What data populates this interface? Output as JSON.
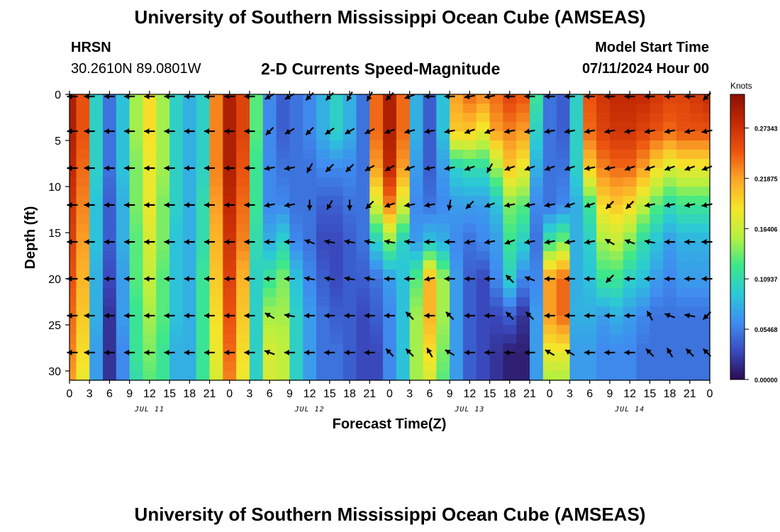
{
  "header": {
    "title": "University of Southern Mississippi Ocean Cube (AMSEAS)",
    "station": "HRSN",
    "coords": "30.2610N  89.0801W",
    "model_start_label": "Model Start Time",
    "model_start_value": "07/11/2024 Hour 00",
    "footer_title": "University of Southern Mississippi Ocean Cube (AMSEAS)"
  },
  "chart_data": {
    "type": "heatmap",
    "title": "2-D Currents Speed-Magnitude",
    "xlabel": "Forecast Time(Z)",
    "ylabel": "Depth (ft)",
    "x_range_hours": [
      0,
      96
    ],
    "ylim": [
      0,
      31
    ],
    "y_ticks": [
      0,
      5,
      10,
      15,
      20,
      25,
      30
    ],
    "x_tick_labels": [
      "0",
      "3",
      "6",
      "9",
      "12",
      "15",
      "18",
      "21",
      "0",
      "3",
      "6",
      "9",
      "12",
      "15",
      "18",
      "21",
      "0",
      "3",
      "6",
      "9",
      "12",
      "15",
      "18",
      "21",
      "0",
      "3",
      "6",
      "9",
      "12",
      "15",
      "18",
      "21",
      "0"
    ],
    "date_labels": [
      {
        "label": "JUL 11",
        "hour": 12
      },
      {
        "label": "JUL 12",
        "hour": 36
      },
      {
        "label": "JUL 13",
        "hour": 60
      },
      {
        "label": "JUL 14",
        "hour": 84
      }
    ],
    "colorbar": {
      "units": "Knots",
      "min": 0.0,
      "max": 0.31,
      "tick_values": [
        0.27343,
        0.21875,
        0.16406,
        0.10937,
        0.05468,
        0.0
      ],
      "tick_labels": [
        "0.27343",
        "0.21875",
        "0.16406",
        "0.10937",
        "0.05468",
        "0.00000"
      ],
      "colors": [
        "#2a0a4f",
        "#3a4bc0",
        "#3f8df0",
        "#2bc8d8",
        "#3de88a",
        "#b8f040",
        "#f5e52a",
        "#fca728",
        "#ec5410",
        "#c42a04",
        "#8a0f00"
      ]
    },
    "depth_profile_ft": [
      0,
      4,
      8,
      12,
      16,
      20,
      24,
      28,
      31
    ],
    "speed_knots": [
      {
        "hour": 0,
        "values": [
          0.29,
          0.29,
          0.28,
          0.27,
          0.26,
          0.25,
          0.24,
          0.23,
          0.22
        ]
      },
      {
        "hour": 2,
        "values": [
          0.25,
          0.25,
          0.24,
          0.23,
          0.22,
          0.21,
          0.2,
          0.19,
          0.18
        ]
      },
      {
        "hour": 4,
        "values": [
          0.1,
          0.1,
          0.1,
          0.09,
          0.09,
          0.08,
          0.08,
          0.07,
          0.07
        ]
      },
      {
        "hour": 6,
        "values": [
          0.05,
          0.05,
          0.05,
          0.04,
          0.04,
          0.03,
          0.02,
          0.02,
          0.02
        ]
      },
      {
        "hour": 8,
        "values": [
          0.09,
          0.09,
          0.09,
          0.08,
          0.08,
          0.07,
          0.07,
          0.06,
          0.06
        ]
      },
      {
        "hour": 10,
        "values": [
          0.15,
          0.15,
          0.14,
          0.14,
          0.13,
          0.13,
          0.12,
          0.12,
          0.11
        ]
      },
      {
        "hour": 12,
        "values": [
          0.19,
          0.19,
          0.18,
          0.18,
          0.17,
          0.16,
          0.15,
          0.14,
          0.13
        ]
      },
      {
        "hour": 14,
        "values": [
          0.15,
          0.15,
          0.15,
          0.14,
          0.14,
          0.13,
          0.13,
          0.12,
          0.12
        ]
      },
      {
        "hour": 16,
        "values": [
          0.1,
          0.1,
          0.1,
          0.1,
          0.09,
          0.09,
          0.09,
          0.08,
          0.08
        ]
      },
      {
        "hour": 18,
        "values": [
          0.08,
          0.08,
          0.08,
          0.08,
          0.08,
          0.08,
          0.08,
          0.08,
          0.08
        ]
      },
      {
        "hour": 20,
        "values": [
          0.1,
          0.1,
          0.1,
          0.11,
          0.11,
          0.12,
          0.12,
          0.12,
          0.12
        ]
      },
      {
        "hour": 22,
        "values": [
          0.23,
          0.23,
          0.23,
          0.22,
          0.21,
          0.2,
          0.19,
          0.18,
          0.17
        ]
      },
      {
        "hour": 24,
        "values": [
          0.29,
          0.29,
          0.29,
          0.28,
          0.27,
          0.26,
          0.25,
          0.24,
          0.23
        ]
      },
      {
        "hour": 26,
        "values": [
          0.26,
          0.26,
          0.25,
          0.24,
          0.23,
          0.21,
          0.2,
          0.19,
          0.18
        ]
      },
      {
        "hour": 28,
        "values": [
          0.13,
          0.13,
          0.12,
          0.12,
          0.11,
          0.1,
          0.1,
          0.1,
          0.1
        ]
      },
      {
        "hour": 30,
        "values": [
          0.06,
          0.06,
          0.06,
          0.06,
          0.08,
          0.12,
          0.15,
          0.17,
          0.17
        ]
      },
      {
        "hour": 32,
        "values": [
          0.04,
          0.04,
          0.05,
          0.06,
          0.1,
          0.14,
          0.15,
          0.16,
          0.16
        ]
      },
      {
        "hour": 34,
        "values": [
          0.05,
          0.05,
          0.05,
          0.05,
          0.06,
          0.09,
          0.1,
          0.1,
          0.1
        ]
      },
      {
        "hour": 36,
        "values": [
          0.06,
          0.06,
          0.05,
          0.05,
          0.05,
          0.06,
          0.07,
          0.07,
          0.07
        ]
      },
      {
        "hour": 38,
        "values": [
          0.08,
          0.08,
          0.06,
          0.04,
          0.03,
          0.04,
          0.05,
          0.05,
          0.05
        ]
      },
      {
        "hour": 40,
        "values": [
          0.1,
          0.1,
          0.06,
          0.04,
          0.03,
          0.03,
          0.04,
          0.05,
          0.05
        ]
      },
      {
        "hour": 42,
        "values": [
          0.08,
          0.08,
          0.06,
          0.05,
          0.04,
          0.04,
          0.04,
          0.04,
          0.04
        ]
      },
      {
        "hour": 44,
        "values": [
          0.05,
          0.05,
          0.05,
          0.05,
          0.05,
          0.04,
          0.03,
          0.03,
          0.03
        ]
      },
      {
        "hour": 46,
        "values": [
          0.24,
          0.24,
          0.22,
          0.17,
          0.1,
          0.05,
          0.04,
          0.03,
          0.03
        ]
      },
      {
        "hour": 48,
        "values": [
          0.29,
          0.29,
          0.28,
          0.23,
          0.14,
          0.07,
          0.06,
          0.06,
          0.06
        ]
      },
      {
        "hour": 50,
        "values": [
          0.24,
          0.24,
          0.22,
          0.17,
          0.1,
          0.09,
          0.09,
          0.09,
          0.09
        ]
      },
      {
        "hour": 52,
        "values": [
          0.08,
          0.08,
          0.07,
          0.06,
          0.07,
          0.13,
          0.15,
          0.15,
          0.15
        ]
      },
      {
        "hour": 54,
        "values": [
          0.04,
          0.04,
          0.04,
          0.05,
          0.09,
          0.21,
          0.21,
          0.19,
          0.17
        ]
      },
      {
        "hour": 56,
        "values": [
          0.09,
          0.09,
          0.07,
          0.06,
          0.08,
          0.15,
          0.15,
          0.14,
          0.13
        ]
      },
      {
        "hour": 58,
        "values": [
          0.22,
          0.2,
          0.1,
          0.07,
          0.06,
          0.07,
          0.07,
          0.07,
          0.07
        ]
      },
      {
        "hour": 60,
        "values": [
          0.24,
          0.2,
          0.11,
          0.07,
          0.05,
          0.04,
          0.04,
          0.04,
          0.04
        ]
      },
      {
        "hour": 62,
        "values": [
          0.23,
          0.18,
          0.11,
          0.07,
          0.06,
          0.03,
          0.03,
          0.03,
          0.03
        ]
      },
      {
        "hour": 64,
        "values": [
          0.24,
          0.22,
          0.15,
          0.09,
          0.07,
          0.06,
          0.03,
          0.02,
          0.02
        ]
      },
      {
        "hour": 66,
        "values": [
          0.26,
          0.23,
          0.2,
          0.14,
          0.12,
          0.1,
          0.04,
          0.01,
          0.01
        ]
      },
      {
        "hour": 68,
        "values": [
          0.25,
          0.22,
          0.18,
          0.13,
          0.1,
          0.06,
          0.02,
          0.01,
          0.01
        ]
      },
      {
        "hour": 70,
        "values": [
          0.12,
          0.1,
          0.08,
          0.06,
          0.05,
          0.06,
          0.07,
          0.07,
          0.07
        ]
      },
      {
        "hour": 72,
        "values": [
          0.05,
          0.05,
          0.05,
          0.05,
          0.12,
          0.22,
          0.22,
          0.18,
          0.15
        ]
      },
      {
        "hour": 74,
        "values": [
          0.04,
          0.04,
          0.05,
          0.06,
          0.14,
          0.24,
          0.24,
          0.18,
          0.15
        ]
      },
      {
        "hour": 76,
        "values": [
          0.1,
          0.1,
          0.1,
          0.08,
          0.08,
          0.08,
          0.08,
          0.07,
          0.07
        ]
      },
      {
        "hour": 78,
        "values": [
          0.25,
          0.24,
          0.2,
          0.12,
          0.1,
          0.09,
          0.08,
          0.07,
          0.07
        ]
      },
      {
        "hour": 80,
        "values": [
          0.27,
          0.26,
          0.23,
          0.19,
          0.15,
          0.12,
          0.07,
          0.06,
          0.06
        ]
      },
      {
        "hour": 82,
        "values": [
          0.28,
          0.27,
          0.24,
          0.2,
          0.16,
          0.12,
          0.08,
          0.06,
          0.06
        ]
      },
      {
        "hour": 84,
        "values": [
          0.28,
          0.27,
          0.24,
          0.19,
          0.14,
          0.1,
          0.07,
          0.06,
          0.06
        ]
      },
      {
        "hour": 86,
        "values": [
          0.28,
          0.26,
          0.22,
          0.16,
          0.11,
          0.09,
          0.06,
          0.05,
          0.05
        ]
      },
      {
        "hour": 88,
        "values": [
          0.27,
          0.25,
          0.19,
          0.13,
          0.09,
          0.07,
          0.05,
          0.05,
          0.05
        ]
      },
      {
        "hour": 90,
        "values": [
          0.26,
          0.24,
          0.17,
          0.11,
          0.07,
          0.06,
          0.05,
          0.05,
          0.05
        ]
      },
      {
        "hour": 92,
        "values": [
          0.26,
          0.25,
          0.18,
          0.12,
          0.08,
          0.07,
          0.05,
          0.05,
          0.05
        ]
      },
      {
        "hour": 94,
        "values": [
          0.27,
          0.25,
          0.18,
          0.12,
          0.08,
          0.07,
          0.05,
          0.05,
          0.05
        ]
      },
      {
        "hour": 96,
        "values": [
          0.28,
          0.25,
          0.18,
          0.12,
          0.08,
          0.07,
          0.05,
          0.05,
          0.05
        ]
      }
    ],
    "vector_depths_ft": [
      0,
      4,
      8,
      12,
      16,
      20,
      24,
      28
    ],
    "vector_hours": [
      0,
      3,
      6,
      9,
      12,
      15,
      18,
      21,
      24,
      27,
      30,
      33,
      36,
      39,
      42,
      45,
      48,
      51,
      54,
      57,
      60,
      63,
      66,
      69,
      72,
      75,
      78,
      81,
      84,
      87,
      90,
      93,
      96
    ],
    "vector_angles_deg": [
      [
        0,
        0,
        0,
        0,
        0,
        0,
        0,
        0,
        0,
        0,
        30,
        30,
        45,
        45,
        60,
        60,
        45,
        20,
        0,
        0,
        10,
        10,
        0,
        0,
        0,
        0,
        0,
        0,
        0,
        0,
        0,
        0,
        45
      ],
      [
        0,
        0,
        0,
        0,
        0,
        0,
        0,
        0,
        0,
        0,
        45,
        30,
        45,
        35,
        30,
        25,
        20,
        15,
        10,
        10,
        20,
        20,
        10,
        10,
        10,
        10,
        10,
        10,
        10,
        10,
        10,
        10,
        10
      ],
      [
        0,
        0,
        0,
        0,
        0,
        0,
        0,
        0,
        0,
        0,
        10,
        10,
        60,
        45,
        45,
        30,
        30,
        20,
        10,
        10,
        20,
        60,
        20,
        20,
        20,
        20,
        10,
        10,
        20,
        20,
        20,
        20,
        20
      ],
      [
        0,
        0,
        0,
        0,
        0,
        0,
        0,
        0,
        0,
        0,
        10,
        10,
        90,
        60,
        90,
        45,
        20,
        10,
        10,
        80,
        45,
        20,
        10,
        10,
        10,
        20,
        20,
        45,
        45,
        10,
        10,
        10,
        10
      ],
      [
        0,
        0,
        0,
        0,
        0,
        0,
        0,
        0,
        0,
        0,
        0,
        0,
        -20,
        -10,
        -10,
        -10,
        -10,
        -5,
        0,
        0,
        10,
        10,
        20,
        10,
        10,
        10,
        10,
        -30,
        -20,
        -10,
        0,
        0,
        0
      ],
      [
        0,
        0,
        0,
        0,
        0,
        0,
        0,
        0,
        0,
        0,
        0,
        0,
        -10,
        -10,
        -10,
        -10,
        0,
        0,
        10,
        0,
        0,
        0,
        -45,
        -20,
        0,
        0,
        0,
        45,
        0,
        0,
        0,
        0,
        0
      ],
      [
        0,
        0,
        0,
        0,
        0,
        0,
        0,
        0,
        0,
        0,
        -30,
        -10,
        0,
        0,
        0,
        0,
        0,
        -45,
        0,
        -45,
        0,
        0,
        -45,
        -45,
        0,
        0,
        0,
        0,
        0,
        -60,
        -20,
        -10,
        45
      ],
      [
        0,
        0,
        0,
        0,
        0,
        0,
        0,
        0,
        0,
        0,
        -20,
        0,
        0,
        0,
        0,
        0,
        -45,
        -45,
        -60,
        -30,
        0,
        0,
        0,
        0,
        -30,
        -30,
        0,
        0,
        0,
        -45,
        -60,
        -45,
        -45
      ]
    ]
  }
}
